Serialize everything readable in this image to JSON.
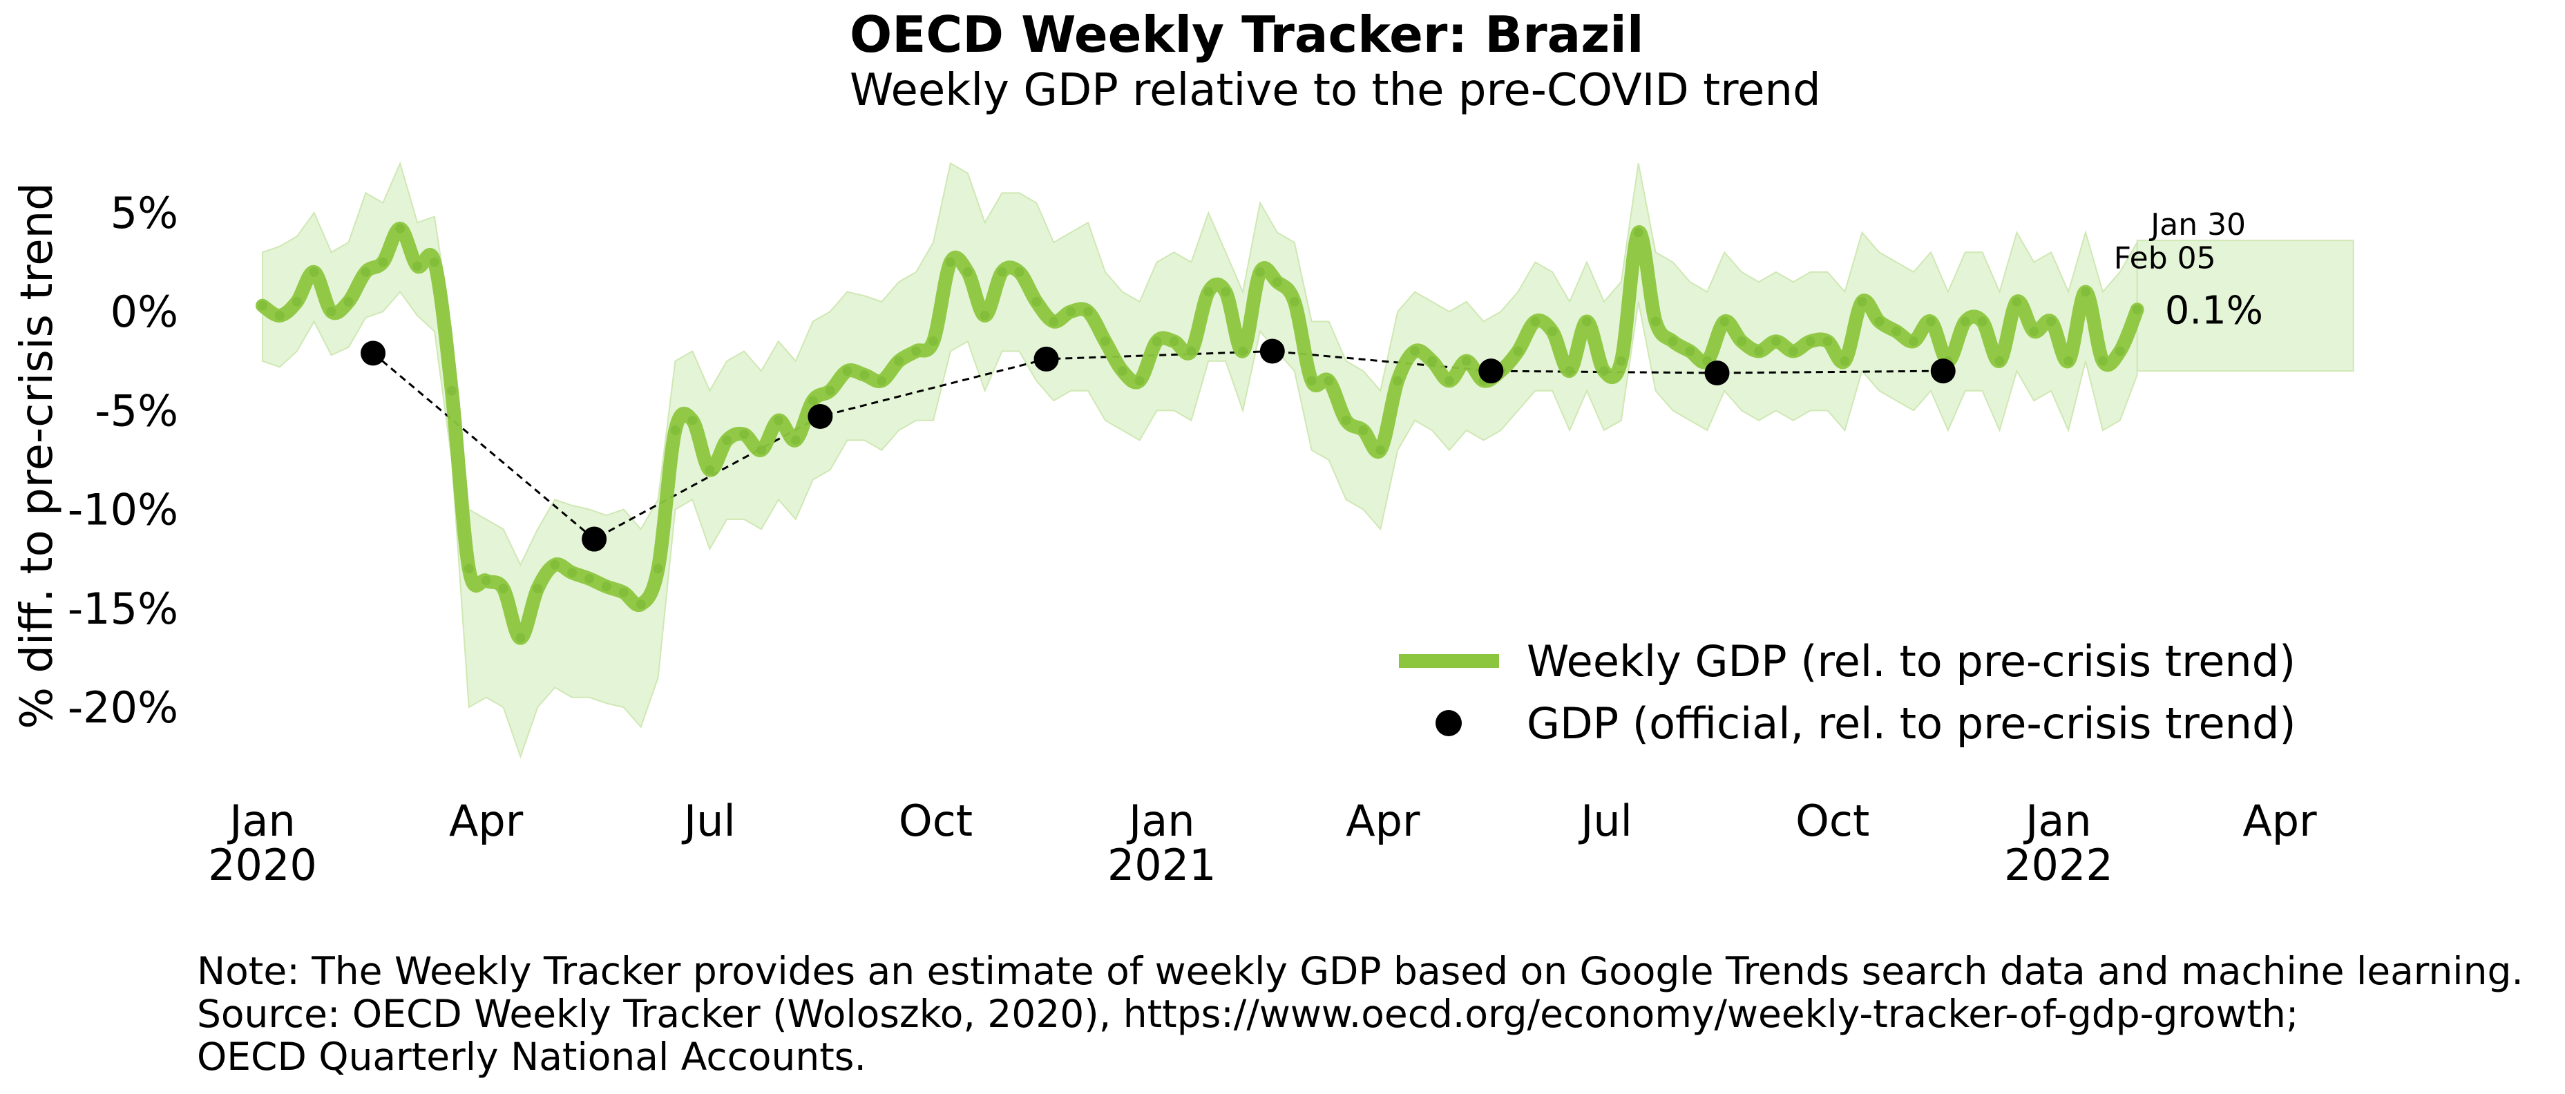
{
  "chart_data": {
    "type": "line",
    "title": "OECD Weekly Tracker: Brazil",
    "subtitle": "Weekly GDP relative to the pre-COVID trend",
    "ylabel": "% diff. to pre-crisis trend",
    "ylim": [
      -24,
      8
    ],
    "y_ticks": [
      {
        "value": 5,
        "label": "5%"
      },
      {
        "value": 0,
        "label": "0%"
      },
      {
        "value": -5,
        "label": "-5%"
      },
      {
        "value": -10,
        "label": "-10%"
      },
      {
        "value": -15,
        "label": "-15%"
      },
      {
        "value": -20,
        "label": "-20%"
      }
    ],
    "x_ticks": [
      {
        "date": "2020-01-01",
        "label": [
          "Jan",
          "2020"
        ]
      },
      {
        "date": "2020-04-01",
        "label": [
          "Apr"
        ]
      },
      {
        "date": "2020-07-01",
        "label": [
          "Jul"
        ]
      },
      {
        "date": "2020-10-01",
        "label": [
          "Oct"
        ]
      },
      {
        "date": "2021-01-01",
        "label": [
          "Jan",
          "2021"
        ]
      },
      {
        "date": "2021-04-01",
        "label": [
          "Apr"
        ]
      },
      {
        "date": "2021-07-01",
        "label": [
          "Jul"
        ]
      },
      {
        "date": "2021-10-01",
        "label": [
          "Oct"
        ]
      },
      {
        "date": "2022-01-01",
        "label": [
          "Jan",
          "2022"
        ]
      },
      {
        "date": "2022-04-01",
        "label": [
          "Apr"
        ]
      }
    ],
    "grid": false,
    "legend_placement": "lower-right",
    "series": [
      {
        "name": "Weekly GDP (rel. to pre-crisis trend)",
        "kind": "line",
        "color": "#8cc63f",
        "band_color": "#d9efc4",
        "points": [
          [
            "2020-01-01",
            0.3,
            -2.5,
            3.0
          ],
          [
            "2020-01-08",
            -0.2,
            -2.8,
            3.3
          ],
          [
            "2020-01-15",
            0.5,
            -2.0,
            3.8
          ],
          [
            "2020-01-22",
            2.0,
            -0.5,
            5.0
          ],
          [
            "2020-01-29",
            0.0,
            -2.2,
            3.0
          ],
          [
            "2020-02-05",
            0.5,
            -1.8,
            3.5
          ],
          [
            "2020-02-12",
            2.0,
            -0.3,
            6.0
          ],
          [
            "2020-02-19",
            2.5,
            0.0,
            5.5
          ],
          [
            "2020-02-26",
            4.2,
            1.0,
            7.5
          ],
          [
            "2020-03-04",
            2.3,
            -0.2,
            4.5
          ],
          [
            "2020-03-11",
            2.5,
            -1.0,
            4.8
          ],
          [
            "2020-03-18",
            -4.0,
            -7.5,
            -1.0
          ],
          [
            "2020-03-25",
            -13.0,
            -20.0,
            -10.0
          ],
          [
            "2020-04-01",
            -13.6,
            -19.5,
            -10.5
          ],
          [
            "2020-04-08",
            -14.0,
            -20.0,
            -11.0
          ],
          [
            "2020-04-15",
            -16.5,
            -22.5,
            -12.8
          ],
          [
            "2020-04-22",
            -14.0,
            -20.0,
            -11.0
          ],
          [
            "2020-04-29",
            -12.8,
            -19.0,
            -9.5
          ],
          [
            "2020-05-06",
            -13.2,
            -19.5,
            -9.8
          ],
          [
            "2020-05-13",
            -13.5,
            -19.5,
            -10.0
          ],
          [
            "2020-05-20",
            -13.9,
            -19.8,
            -10.3
          ],
          [
            "2020-05-27",
            -14.2,
            -20.0,
            -10.0
          ],
          [
            "2020-06-03",
            -14.8,
            -21.0,
            -11.0
          ],
          [
            "2020-06-10",
            -13.0,
            -18.5,
            -9.5
          ],
          [
            "2020-06-17",
            -6.0,
            -10.0,
            -2.5
          ],
          [
            "2020-06-24",
            -5.5,
            -9.5,
            -2.0
          ],
          [
            "2020-07-01",
            -8.0,
            -12.0,
            -4.0
          ],
          [
            "2020-07-08",
            -6.5,
            -10.5,
            -2.5
          ],
          [
            "2020-07-15",
            -6.2,
            -10.5,
            -2.0
          ],
          [
            "2020-07-22",
            -7.0,
            -11.0,
            -3.0
          ],
          [
            "2020-07-29",
            -5.5,
            -9.5,
            -1.5
          ],
          [
            "2020-08-05",
            -6.5,
            -10.5,
            -2.5
          ],
          [
            "2020-08-12",
            -4.5,
            -8.5,
            -0.5
          ],
          [
            "2020-08-19",
            -4.0,
            -8.0,
            0.0
          ],
          [
            "2020-08-26",
            -3.0,
            -6.5,
            1.0
          ],
          [
            "2020-09-02",
            -3.2,
            -6.5,
            0.8
          ],
          [
            "2020-09-09",
            -3.5,
            -7.0,
            0.5
          ],
          [
            "2020-09-16",
            -2.5,
            -6.0,
            1.5
          ],
          [
            "2020-09-23",
            -2.0,
            -5.5,
            2.0
          ],
          [
            "2020-09-30",
            -1.5,
            -5.5,
            3.5
          ],
          [
            "2020-10-07",
            2.5,
            -2.0,
            7.5
          ],
          [
            "2020-10-14",
            2.0,
            -1.5,
            7.0
          ],
          [
            "2020-10-21",
            -0.2,
            -4.0,
            4.5
          ],
          [
            "2020-10-28",
            2.0,
            -2.0,
            6.0
          ],
          [
            "2020-11-04",
            2.0,
            -2.0,
            6.0
          ],
          [
            "2020-11-11",
            0.5,
            -3.5,
            5.5
          ],
          [
            "2020-11-18",
            -0.5,
            -4.5,
            3.5
          ],
          [
            "2020-11-25",
            0.0,
            -4.0,
            4.0
          ],
          [
            "2020-12-02",
            0.0,
            -4.0,
            4.5
          ],
          [
            "2020-12-09",
            -1.5,
            -5.5,
            2.0
          ],
          [
            "2020-12-16",
            -3.0,
            -6.0,
            1.0
          ],
          [
            "2020-12-23",
            -3.5,
            -6.5,
            0.5
          ],
          [
            "2020-12-30",
            -1.5,
            -5.0,
            2.5
          ],
          [
            "2021-01-06",
            -1.5,
            -5.0,
            3.0
          ],
          [
            "2021-01-13",
            -2.0,
            -5.5,
            2.5
          ],
          [
            "2021-01-20",
            1.0,
            -2.5,
            5.0
          ],
          [
            "2021-01-27",
            1.0,
            -2.5,
            3.0
          ],
          [
            "2021-02-03",
            -2.0,
            -5.0,
            1.0
          ],
          [
            "2021-02-10",
            2.0,
            -1.0,
            5.5
          ],
          [
            "2021-02-17",
            1.5,
            -2.0,
            4.0
          ],
          [
            "2021-02-24",
            0.5,
            -3.0,
            3.5
          ],
          [
            "2021-03-03",
            -3.5,
            -7.0,
            -0.5
          ],
          [
            "2021-03-10",
            -3.5,
            -7.5,
            -0.5
          ],
          [
            "2021-03-17",
            -5.5,
            -9.5,
            -2.5
          ],
          [
            "2021-03-24",
            -6.0,
            -10.0,
            -3.0
          ],
          [
            "2021-03-31",
            -7.0,
            -11.0,
            -4.0
          ],
          [
            "2021-04-07",
            -3.5,
            -7.0,
            0.0
          ],
          [
            "2021-04-14",
            -2.0,
            -5.5,
            1.0
          ],
          [
            "2021-04-21",
            -2.5,
            -6.0,
            0.5
          ],
          [
            "2021-04-28",
            -3.5,
            -7.0,
            0.0
          ],
          [
            "2021-05-05",
            -2.5,
            -6.0,
            0.5
          ],
          [
            "2021-05-12",
            -3.5,
            -6.5,
            -0.5
          ],
          [
            "2021-05-19",
            -3.0,
            -6.0,
            0.0
          ],
          [
            "2021-05-26",
            -2.0,
            -5.0,
            1.0
          ],
          [
            "2021-06-02",
            -0.5,
            -4.0,
            2.5
          ],
          [
            "2021-06-09",
            -1.0,
            -4.0,
            2.0
          ],
          [
            "2021-06-16",
            -3.0,
            -6.0,
            0.5
          ],
          [
            "2021-06-23",
            -0.5,
            -4.0,
            2.5
          ],
          [
            "2021-06-30",
            -3.0,
            -6.0,
            0.5
          ],
          [
            "2021-07-07",
            -2.5,
            -5.5,
            1.5
          ],
          [
            "2021-07-14",
            4.0,
            0.5,
            7.5
          ],
          [
            "2021-07-21",
            -0.5,
            -4.0,
            3.0
          ],
          [
            "2021-07-28",
            -1.5,
            -5.0,
            2.5
          ],
          [
            "2021-08-04",
            -2.0,
            -5.5,
            1.5
          ],
          [
            "2021-08-11",
            -2.5,
            -6.0,
            1.0
          ],
          [
            "2021-08-18",
            -0.5,
            -4.0,
            3.0
          ],
          [
            "2021-08-25",
            -1.5,
            -5.0,
            2.0
          ],
          [
            "2021-09-01",
            -2.0,
            -5.5,
            1.5
          ],
          [
            "2021-09-08",
            -1.5,
            -5.0,
            2.0
          ],
          [
            "2021-09-15",
            -2.0,
            -5.5,
            1.5
          ],
          [
            "2021-09-22",
            -1.5,
            -5.0,
            2.0
          ],
          [
            "2021-09-29",
            -1.5,
            -5.0,
            2.0
          ],
          [
            "2021-10-06",
            -2.5,
            -6.0,
            1.0
          ],
          [
            "2021-10-13",
            0.5,
            -3.0,
            4.0
          ],
          [
            "2021-10-20",
            -0.5,
            -4.0,
            3.0
          ],
          [
            "2021-10-27",
            -1.0,
            -4.5,
            2.5
          ],
          [
            "2021-11-03",
            -1.5,
            -5.0,
            2.0
          ],
          [
            "2021-11-10",
            -0.5,
            -4.0,
            3.0
          ],
          [
            "2021-11-17",
            -2.5,
            -6.0,
            1.0
          ],
          [
            "2021-11-24",
            -0.5,
            -4.0,
            3.0
          ],
          [
            "2021-12-01",
            -0.5,
            -4.0,
            3.0
          ],
          [
            "2021-12-08",
            -2.5,
            -6.0,
            1.0
          ],
          [
            "2021-12-15",
            0.5,
            -3.0,
            4.0
          ],
          [
            "2021-12-22",
            -1.0,
            -4.5,
            2.5
          ],
          [
            "2021-12-29",
            -0.5,
            -4.0,
            3.0
          ],
          [
            "2022-01-05",
            -2.5,
            -6.0,
            1.0
          ],
          [
            "2022-01-12",
            1.0,
            -2.5,
            4.0
          ],
          [
            "2022-01-19",
            -2.5,
            -6.0,
            1.0
          ],
          [
            "2022-01-26",
            -2.0,
            -5.5,
            2.0
          ],
          [
            "2022-02-02",
            0.1,
            -3.2,
            3.5
          ]
        ],
        "forecast_band": {
          "from": "2022-02-02",
          "to": "2022-05-01",
          "low": -3.0,
          "high": 3.6
        }
      },
      {
        "name": "GDP (official, rel. to pre-crisis trend)",
        "kind": "points",
        "color": "#000000",
        "points": [
          [
            "2020-02-15",
            -2.1
          ],
          [
            "2020-05-15",
            -11.5
          ],
          [
            "2020-08-15",
            -5.3
          ],
          [
            "2020-11-15",
            -2.4
          ],
          [
            "2021-02-15",
            -2.0
          ],
          [
            "2021-05-15",
            -3.0
          ],
          [
            "2021-08-15",
            -3.1
          ],
          [
            "2021-11-15",
            -3.0
          ]
        ]
      }
    ],
    "annotations": [
      {
        "text": "Jan 30",
        "date": "2022-02-10",
        "y": 4.3
      },
      {
        "text": "Feb 05",
        "date": "2022-02-02",
        "y": 2.6
      },
      {
        "text": "0.1%",
        "date": "2022-02-02",
        "y": 0.1
      }
    ],
    "note_lines": [
      "Note: The Weekly Tracker provides an estimate of weekly GDP based on Google Trends search data and machine learning.",
      "Source: OECD Weekly Tracker (Woloszko, 2020), https://www.oecd.org/economy/weekly-tracker-of-gdp-growth;",
      "OECD Quarterly National Accounts."
    ]
  }
}
